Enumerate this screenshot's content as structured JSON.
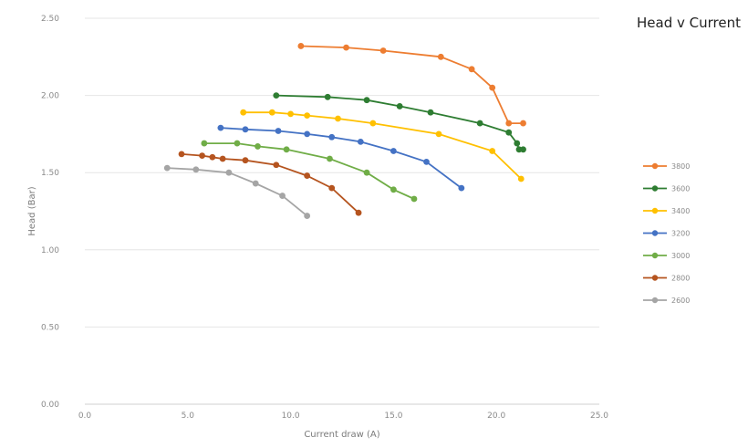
{
  "header": {
    "title": "Head v Current"
  },
  "chart_data": {
    "type": "line",
    "title": "",
    "xlabel": "Current draw (A)",
    "ylabel": "Head (Bar)",
    "xlim": [
      0,
      25
    ],
    "ylim": [
      0,
      2.5
    ],
    "xticks": [
      "0.0",
      "5.0",
      "10.0",
      "15.0",
      "20.0",
      "25.0"
    ],
    "yticks": [
      "0.00",
      "0.50",
      "1.00",
      "1.50",
      "2.00",
      "2.50"
    ],
    "grid": "horizontal",
    "legend": "right",
    "series": [
      {
        "name": "3800",
        "color": "#ED7D31",
        "points": [
          [
            10.5,
            2.32
          ],
          [
            12.7,
            2.31
          ],
          [
            14.5,
            2.29
          ],
          [
            17.3,
            2.25
          ],
          [
            18.8,
            2.17
          ],
          [
            19.8,
            2.05
          ],
          [
            20.6,
            1.82
          ],
          [
            21.3,
            1.82
          ]
        ]
      },
      {
        "name": "3600",
        "color": "#2E7D32",
        "points": [
          [
            9.3,
            2.0
          ],
          [
            11.8,
            1.99
          ],
          [
            13.7,
            1.97
          ],
          [
            15.3,
            1.93
          ],
          [
            16.8,
            1.89
          ],
          [
            19.2,
            1.82
          ],
          [
            20.6,
            1.76
          ],
          [
            21.0,
            1.69
          ],
          [
            21.1,
            1.65
          ],
          [
            21.3,
            1.65
          ]
        ]
      },
      {
        "name": "3400",
        "color": "#FFC000",
        "points": [
          [
            7.7,
            1.89
          ],
          [
            9.1,
            1.89
          ],
          [
            10.0,
            1.88
          ],
          [
            10.8,
            1.87
          ],
          [
            12.3,
            1.85
          ],
          [
            14.0,
            1.82
          ],
          [
            17.2,
            1.75
          ],
          [
            19.8,
            1.64
          ],
          [
            21.2,
            1.46
          ]
        ]
      },
      {
        "name": "3200",
        "color": "#4472C4",
        "points": [
          [
            6.6,
            1.79
          ],
          [
            7.8,
            1.78
          ],
          [
            9.4,
            1.77
          ],
          [
            10.8,
            1.75
          ],
          [
            12.0,
            1.73
          ],
          [
            13.4,
            1.7
          ],
          [
            15.0,
            1.64
          ],
          [
            16.6,
            1.57
          ],
          [
            18.3,
            1.4
          ]
        ]
      },
      {
        "name": "3000",
        "color": "#70AD47",
        "points": [
          [
            5.8,
            1.69
          ],
          [
            7.4,
            1.69
          ],
          [
            8.4,
            1.67
          ],
          [
            9.8,
            1.65
          ],
          [
            11.9,
            1.59
          ],
          [
            13.7,
            1.5
          ],
          [
            15.0,
            1.39
          ],
          [
            16.0,
            1.33
          ]
        ]
      },
      {
        "name": "2800",
        "color": "#B5541F",
        "points": [
          [
            4.7,
            1.62
          ],
          [
            5.7,
            1.61
          ],
          [
            6.2,
            1.6
          ],
          [
            6.7,
            1.59
          ],
          [
            7.8,
            1.58
          ],
          [
            9.3,
            1.55
          ],
          [
            10.8,
            1.48
          ],
          [
            12.0,
            1.4
          ],
          [
            13.3,
            1.24
          ]
        ]
      },
      {
        "name": "2600",
        "color": "#A5A5A5",
        "points": [
          [
            4.0,
            1.53
          ],
          [
            5.4,
            1.52
          ],
          [
            7.0,
            1.5
          ],
          [
            8.3,
            1.43
          ],
          [
            9.6,
            1.35
          ],
          [
            10.8,
            1.22
          ]
        ]
      }
    ]
  }
}
